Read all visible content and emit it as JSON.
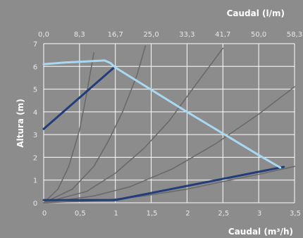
{
  "chart_data": {
    "type": "line",
    "top_axis": {
      "label": "Caudal (l/m)",
      "ticks": [
        "0,0",
        "8,3",
        "16,7",
        "25,0",
        "33,3",
        "41,7",
        "50,0",
        "58,3"
      ]
    },
    "bottom_axis": {
      "label": "Caudal (m³/h)",
      "ticks": [
        "0",
        "0,5",
        "1",
        "1,5",
        "2",
        "2,5",
        "3",
        "3,5"
      ],
      "range": [
        0,
        3.5
      ]
    },
    "left_axis": {
      "label": "Altura (m)",
      "ticks": [
        "0",
        "1",
        "2",
        "3",
        "4",
        "5",
        "6",
        "7"
      ],
      "range": [
        0,
        7
      ]
    },
    "grid": true,
    "series": [
      {
        "color": "#6a6a6a",
        "points": [
          [
            0,
            0
          ],
          [
            0.2,
            0.6
          ],
          [
            0.35,
            1.6
          ],
          [
            0.5,
            3.2
          ],
          [
            0.6,
            4.8
          ],
          [
            0.7,
            6.6
          ]
        ]
      },
      {
        "color": "#6a6a6a",
        "points": [
          [
            0,
            0
          ],
          [
            0.4,
            0.6
          ],
          [
            0.7,
            1.6
          ],
          [
            0.9,
            2.7
          ],
          [
            1.1,
            4.0
          ],
          [
            1.3,
            5.6
          ],
          [
            1.42,
            6.9
          ]
        ]
      },
      {
        "color": "#6a6a6a",
        "points": [
          [
            0,
            0
          ],
          [
            0.6,
            0.5
          ],
          [
            1.0,
            1.3
          ],
          [
            1.4,
            2.4
          ],
          [
            1.75,
            3.6
          ],
          [
            2.1,
            5.1
          ],
          [
            2.5,
            6.8
          ]
        ]
      },
      {
        "color": "#6a6a6a",
        "points": [
          [
            0,
            0
          ],
          [
            0.7,
            0.3
          ],
          [
            1.2,
            0.7
          ],
          [
            1.8,
            1.5
          ],
          [
            2.4,
            2.6
          ],
          [
            3.0,
            3.9
          ],
          [
            3.5,
            5.1
          ]
        ]
      },
      {
        "color": "#6a6a6a",
        "points": [
          [
            0,
            0
          ],
          [
            0.8,
            0.1
          ],
          [
            1.4,
            0.3
          ],
          [
            2.0,
            0.6
          ],
          [
            2.6,
            1.0
          ],
          [
            3.0,
            1.25
          ],
          [
            3.5,
            1.6
          ]
        ]
      },
      {
        "color": "#223d7a",
        "points": [
          [
            0,
            3.25
          ],
          [
            0.97,
            5.92
          ]
        ]
      },
      {
        "color": "#223d7a",
        "points": [
          [
            0,
            0.12
          ],
          [
            1.0,
            0.12
          ],
          [
            3.35,
            1.58
          ]
        ]
      },
      {
        "color": "#a9d8f2",
        "points": [
          [
            0,
            6.1
          ],
          [
            0.3,
            6.17
          ],
          [
            0.6,
            6.22
          ],
          [
            0.85,
            6.26
          ],
          [
            0.93,
            6.15
          ],
          [
            1.0,
            5.95
          ],
          [
            2.0,
            4.0
          ],
          [
            3.0,
            2.1
          ],
          [
            3.3,
            1.55
          ]
        ]
      }
    ]
  }
}
